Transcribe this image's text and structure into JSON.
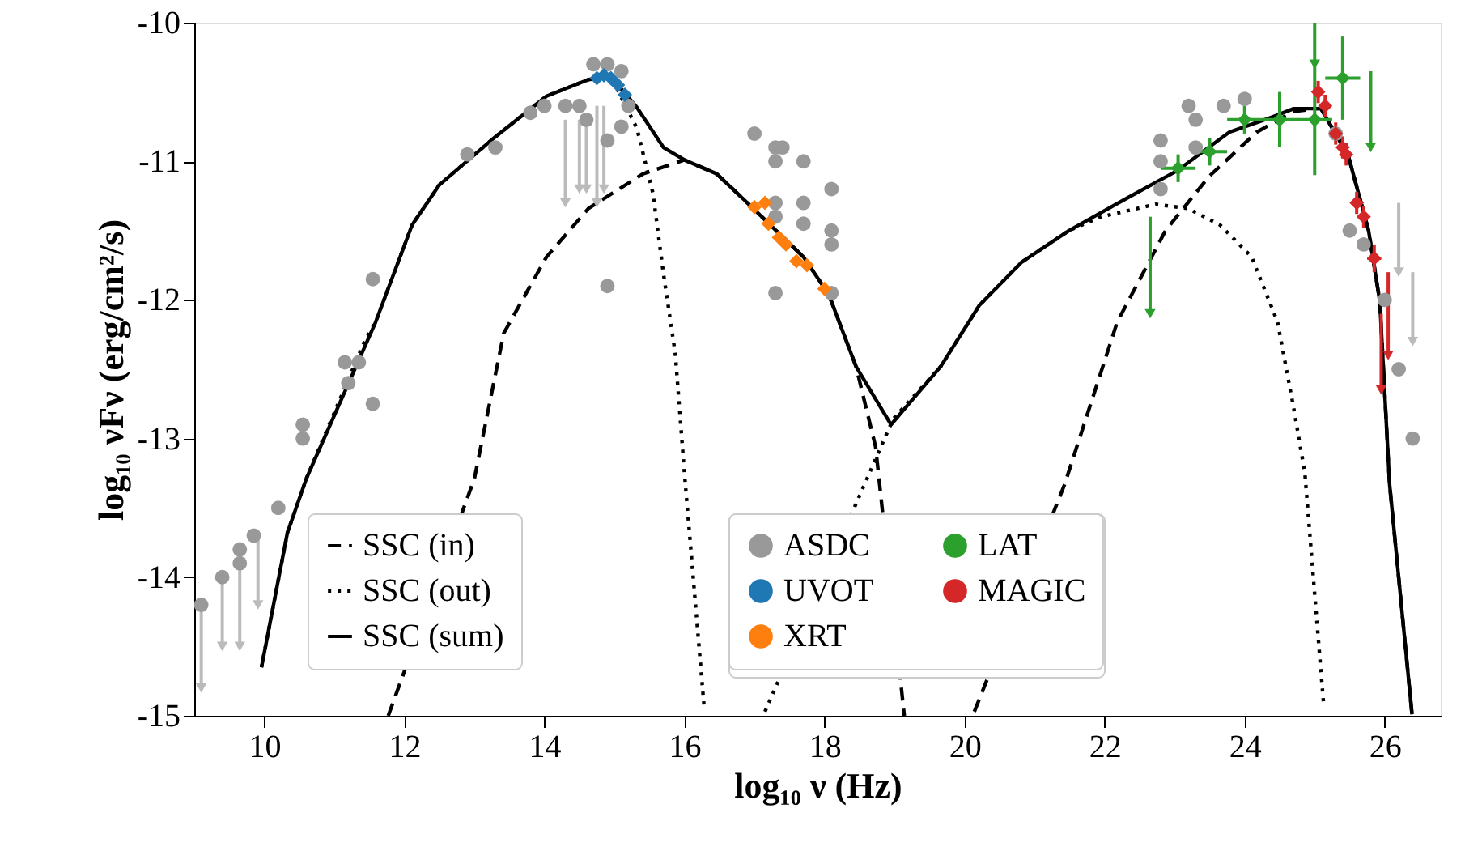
{
  "chart_data": {
    "type": "line",
    "xlabel": "log₁₀ ν  (Hz)",
    "ylabel": "log₁₀ νFν  (erg/cm²/s)",
    "xlim": [
      9,
      26.8
    ],
    "ylim": [
      -15,
      -10
    ],
    "xticks": [
      10,
      12,
      14,
      16,
      18,
      20,
      22,
      24,
      26
    ],
    "yticks": [
      -15,
      -14,
      -13,
      -12,
      -11,
      -10
    ],
    "grid": false,
    "legend": "bottom",
    "series": [
      {
        "name": "SSC (in)",
        "line_style": "dashed",
        "color": "#000000",
        "x": [
          11.77,
          13.0,
          13.42,
          14.03,
          14.63,
          15.41,
          16.0,
          16.46,
          16.92,
          17.7,
          18.06,
          18.45,
          18.73,
          19.14,
          19.5,
          20.14,
          21.43,
          22.18,
          22.87,
          23.49,
          24.17,
          24.7,
          25.02,
          25.09,
          25.48,
          25.77,
          25.93,
          26.07,
          26.39
        ],
        "values": [
          -15,
          -13.29,
          -12.24,
          -11.69,
          -11.34,
          -11.09,
          -10.99,
          -11.09,
          -11.31,
          -11.69,
          -11.96,
          -12.48,
          -13.06,
          -15,
          null,
          -14.97,
          -13.33,
          -12.16,
          -11.5,
          -11.11,
          -10.79,
          -10.64,
          -10.62,
          -10.62,
          -10.96,
          -11.5,
          -12.01,
          -13.33,
          -14.99
        ]
      },
      {
        "name": "SSC (out)",
        "line_style": "dotted",
        "color": "#000000",
        "x": [
          9.96,
          10.33,
          10.6,
          11.43,
          11.59,
          12.11,
          12.5,
          13.26,
          14.03,
          14.63,
          14.95,
          15.32,
          15.55,
          15.7,
          15.87,
          16.0,
          16.28,
          16.7,
          17.15,
          18.98,
          19.66,
          20.21,
          20.81,
          21.49,
          21.95,
          22.73,
          23.19,
          23.65,
          24.1,
          24.47,
          24.7,
          24.86,
          25.13
        ],
        "values": [
          -14.65,
          -13.68,
          -13.29,
          -12.3,
          -12.16,
          -11.46,
          -11.17,
          -10.84,
          -10.53,
          -10.41,
          -10.39,
          -10.76,
          -11.23,
          -11.81,
          -12.39,
          -13.25,
          -14.93,
          null,
          -14.97,
          -12.86,
          -12.48,
          -12.04,
          -11.73,
          -11.5,
          -11.4,
          -11.31,
          -11.34,
          -11.46,
          -11.69,
          -12.16,
          -12.78,
          -13.25,
          -14.93
        ]
      },
      {
        "name": "SSC (sum)",
        "line_style": "solid",
        "color": "#000000",
        "x": [
          9.96,
          10.33,
          10.6,
          11.59,
          12.11,
          12.5,
          13.26,
          14.03,
          14.63,
          14.95,
          15.32,
          15.7,
          16.0,
          16.46,
          16.92,
          17.7,
          18.06,
          18.45,
          18.95,
          19.66,
          20.21,
          20.81,
          21.49,
          22.34,
          23.03,
          23.78,
          24.4,
          24.7,
          25.09,
          25.48,
          25.77,
          25.93,
          26.07,
          26.39
        ],
        "values": [
          -14.65,
          -13.68,
          -13.29,
          -12.16,
          -11.46,
          -11.17,
          -10.84,
          -10.53,
          -10.41,
          -10.39,
          -10.61,
          -10.9,
          -10.99,
          -11.09,
          -11.31,
          -11.69,
          -11.96,
          -12.48,
          -12.9,
          -12.48,
          -12.04,
          -11.73,
          -11.5,
          -11.26,
          -11.07,
          -10.79,
          -10.68,
          -10.62,
          -10.62,
          -10.96,
          -11.5,
          -12.01,
          -13.33,
          -14.99
        ]
      },
      {
        "name": "ASDC",
        "type": "scatter",
        "marker": "circle",
        "color": "#999999",
        "x": [
          9.1,
          9.4,
          9.65,
          9.65,
          9.85,
          10.2,
          10.55,
          10.55,
          11.15,
          11.35,
          11.2,
          11.55,
          11.55,
          12.9,
          13.3,
          13.8,
          14.0,
          14.3,
          14.5,
          14.7,
          14.9,
          15.1,
          14.6,
          14.9,
          14.9,
          15.1,
          15.2,
          17.0,
          17.3,
          17.4,
          17.7,
          17.3,
          17.3,
          17.3,
          17.7,
          17.7,
          18.1,
          18.1,
          18.1,
          17.3,
          18.1,
          22.8,
          22.8,
          22.8,
          23.2,
          23.3,
          23.3,
          23.7,
          24.0,
          25.3,
          25.5,
          25.7,
          26.0,
          26.2,
          26.4
        ],
        "values": [
          -14.2,
          -14.0,
          -13.8,
          -13.9,
          -13.7,
          -13.5,
          -12.9,
          -13.0,
          -12.45,
          -12.45,
          -12.6,
          -12.75,
          -11.85,
          -10.95,
          -10.9,
          -10.65,
          -10.6,
          -10.6,
          -10.6,
          -10.3,
          -10.3,
          -10.35,
          -10.7,
          -10.85,
          -11.9,
          -10.75,
          -10.6,
          -10.8,
          -10.9,
          -10.9,
          -11.0,
          -11.0,
          -11.3,
          -11.4,
          -11.3,
          -11.45,
          -11.2,
          -11.5,
          -11.6,
          -11.95,
          -11.95,
          -10.85,
          -11.0,
          -11.2,
          -10.6,
          -10.7,
          -10.9,
          -10.6,
          -10.55,
          -10.8,
          -11.5,
          -11.6,
          -12.0,
          -12.5,
          -13.0
        ]
      },
      {
        "type": "scatter",
        "marker": "triangle",
        "color": "#bbbbbb",
        "x": [
          9.1,
          9.4,
          9.65,
          9.91,
          14.3,
          14.5,
          14.6,
          14.75,
          14.85,
          26.2,
          26.4
        ],
        "values": [
          -14.8,
          -14.5,
          -14.5,
          -14.2,
          -11.3,
          -11.2,
          -11.2,
          -11.3,
          -11.2,
          -11.8,
          -12.3
        ],
        "errors": [
          [
            -14.8,
            -14.2
          ],
          [
            -14.5,
            -14.0
          ],
          [
            -14.5,
            -13.8
          ],
          [
            -14.2,
            -13.7
          ],
          [
            -11.3,
            -10.7
          ],
          [
            -11.2,
            -10.7
          ],
          [
            -11.2,
            -10.7
          ],
          [
            -11.3,
            -10.6
          ],
          [
            -11.2,
            -10.6
          ],
          [
            -11.8,
            -11.3
          ],
          [
            -12.3,
            -11.8
          ]
        ]
      },
      {
        "name": "UVOT",
        "type": "scatter",
        "marker": "diamond",
        "color": "#1f77b4",
        "x": [
          14.75,
          14.85,
          14.95,
          15.05,
          15.15
        ],
        "values": [
          -10.4,
          -10.38,
          -10.4,
          -10.45,
          -10.52
        ]
      },
      {
        "name": "XRT",
        "type": "scatter",
        "marker": "diamond",
        "color": "#ff7f0e",
        "x": [
          17.0,
          17.15,
          17.2,
          17.35,
          17.45,
          17.6,
          17.75,
          18.0
        ],
        "values": [
          -11.33,
          -11.3,
          -11.45,
          -11.55,
          -11.6,
          -11.72,
          -11.75,
          -11.92
        ]
      },
      {
        "name": "LAT",
        "type": "scatter",
        "marker": "diamond",
        "color": "#2ca02c",
        "x": [
          23.05,
          23.5,
          24.0,
          24.5,
          25.0,
          25.4
        ],
        "values": [
          -11.05,
          -10.93,
          -10.7,
          -10.7,
          -10.7,
          -10.4
        ],
        "errors": [
          0.1,
          0.1,
          0.1,
          0.2,
          0.4,
          0.3
        ],
        "xerrors": [
          0.25,
          0.25,
          0.25,
          0.25,
          0.25,
          0.25
        ]
      },
      {
        "type": "scatter",
        "marker": "triangle",
        "color": "#2ca02c",
        "x": [
          22.65,
          25.0,
          25.8
        ],
        "values": [
          -12.1,
          -10.3,
          -10.9
        ],
        "errors": [
          [
            -12.1,
            -11.4
          ],
          [
            -10.3,
            -10.0
          ],
          [
            -10.9,
            -10.35
          ]
        ]
      },
      {
        "name": "MAGIC",
        "type": "scatter",
        "marker": "diamond",
        "color": "#d62728",
        "x": [
          25.05,
          25.15,
          25.3,
          25.4,
          25.45,
          25.6,
          25.7,
          25.85
        ],
        "values": [
          -10.5,
          -10.6,
          -10.8,
          -10.9,
          -10.95,
          -11.3,
          -11.4,
          -11.7
        ],
        "errors": [
          0.08,
          0.08,
          0.08,
          0.08,
          0.08,
          0.08,
          0.08,
          0.1
        ],
        "xerrors": [
          0.05,
          0.05,
          0.05,
          0.05,
          0.05,
          0.05,
          0.05,
          0.1
        ]
      },
      {
        "type": "scatter",
        "marker": "triangle",
        "color": "#d62728",
        "x": [
          26.05,
          25.95
        ],
        "values": [
          -12.4,
          -12.65
        ],
        "errors": [
          [
            -12.4,
            -11.8
          ],
          [
            -12.65,
            -12.1
          ]
        ]
      }
    ]
  }
}
